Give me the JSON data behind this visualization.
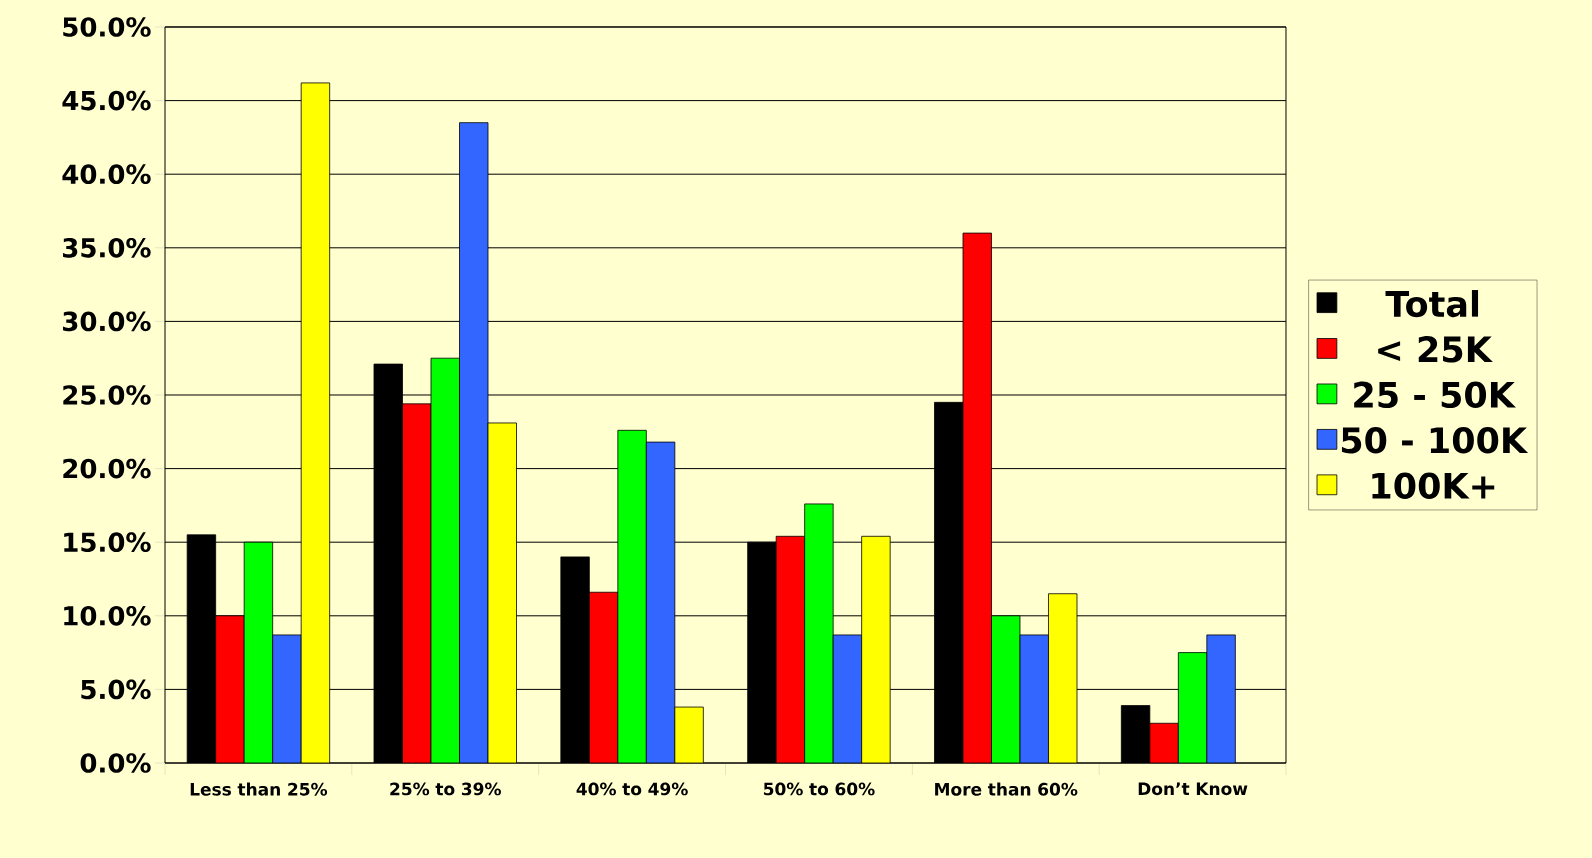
{
  "chart_data": {
    "type": "bar",
    "categories": [
      "Less than 25%",
      "25% to 39%",
      "40% to 49%",
      "50% to 60%",
      "More than 60%",
      "Don’t Know"
    ],
    "series": [
      {
        "name": "Total",
        "color": "#000000",
        "values": [
          15.5,
          27.1,
          14.0,
          15.0,
          24.5,
          3.9
        ]
      },
      {
        "name": "< 25K",
        "color": "#ff0000",
        "values": [
          10.0,
          24.4,
          11.6,
          15.4,
          36.0,
          2.7
        ]
      },
      {
        "name": "25 - 50K",
        "color": "#00ff00",
        "values": [
          15.0,
          27.5,
          22.6,
          17.6,
          10.0,
          7.5
        ]
      },
      {
        "name": "50 - 100K",
        "color": "#3366ff",
        "values": [
          8.7,
          43.5,
          21.8,
          8.7,
          8.7,
          8.7
        ]
      },
      {
        "name": "100K+",
        "color": "#ffff00",
        "values": [
          46.2,
          23.1,
          3.8,
          15.4,
          11.5,
          null
        ]
      }
    ],
    "ylim": [
      0,
      50
    ],
    "yticks": [
      {
        "value": 0,
        "label": "0.0%"
      },
      {
        "value": 5,
        "label": "5.0%"
      },
      {
        "value": 10,
        "label": "10.0%"
      },
      {
        "value": 15,
        "label": "15.0%"
      },
      {
        "value": 20,
        "label": "20.0%"
      },
      {
        "value": 25,
        "label": "25.0%"
      },
      {
        "value": 30,
        "label": "30.0%"
      },
      {
        "value": 35,
        "label": "35.0%"
      },
      {
        "value": 40,
        "label": "40.0%"
      },
      {
        "value": 45,
        "label": "45.0%"
      },
      {
        "value": 50,
        "label": "50.0%"
      }
    ],
    "grid": "y",
    "legend": "right"
  }
}
